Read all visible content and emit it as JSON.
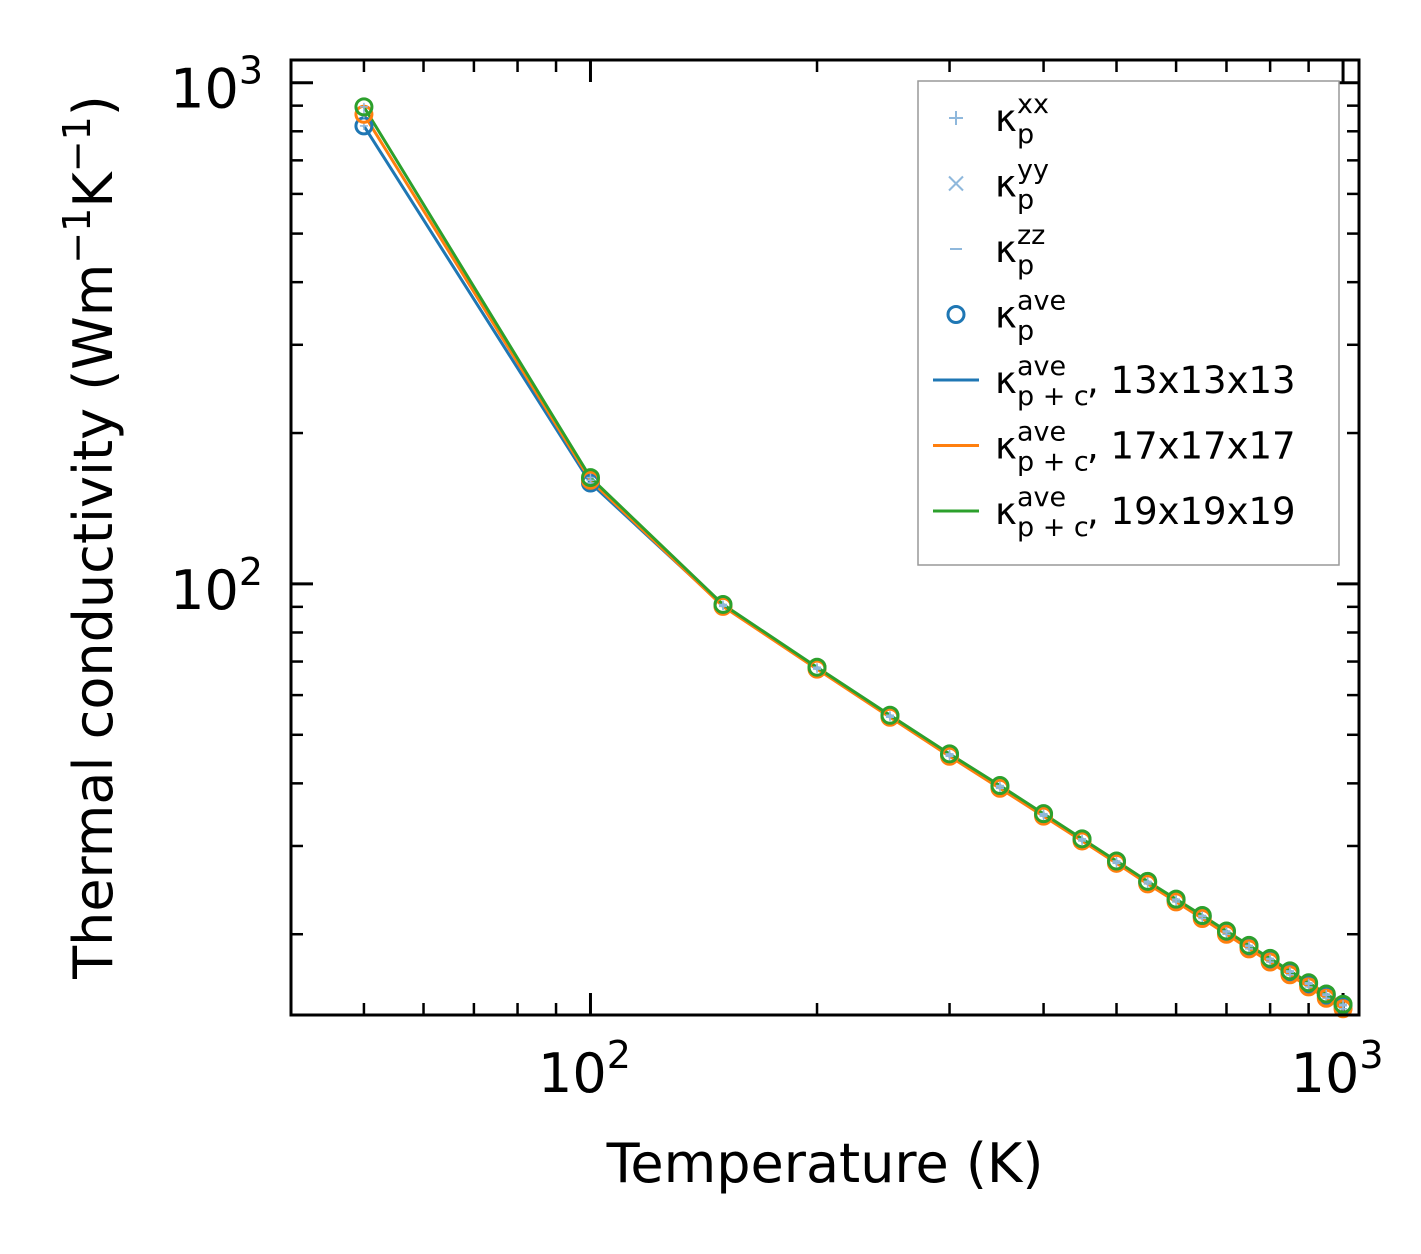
{
  "chart_data": {
    "type": "line",
    "xscale": "log",
    "yscale": "log",
    "xlabel": "Temperature (K)",
    "ylabel": {
      "main": "Thermal conductivity (Wm",
      "neg": "−1",
      "k": "K",
      "neg2": "−1",
      "close": ")"
    },
    "xlim": [
      40,
      1050
    ],
    "ylim": [
      13.8,
      1110
    ],
    "xticks": [
      {
        "base": "10",
        "exp": "2",
        "value": 100
      },
      {
        "base": "10",
        "exp": "3",
        "value": 1000
      }
    ],
    "yticks": [
      {
        "base": "10",
        "exp": "2",
        "value": 100
      },
      {
        "base": "10",
        "exp": "3",
        "value": 1000
      }
    ],
    "x": [
      50,
      100,
      150,
      200,
      250,
      300,
      350,
      400,
      450,
      500,
      550,
      600,
      650,
      700,
      750,
      800,
      850,
      900,
      950,
      1000
    ],
    "series": [
      {
        "name": "13x13x13",
        "color": "#1f77b4",
        "values": [
          820,
          159,
          90.5,
          68.0,
          54.5,
          45.6,
          39.4,
          34.6,
          30.9,
          27.9,
          25.4,
          23.4,
          21.7,
          20.2,
          18.9,
          17.8,
          16.8,
          15.9,
          15.1,
          14.4
        ]
      },
      {
        "name": "17x17x17",
        "color": "#ff7f0e",
        "values": [
          865,
          161,
          90.2,
          67.6,
          54.2,
          45.3,
          39.1,
          34.4,
          30.7,
          27.7,
          25.2,
          23.2,
          21.5,
          20.0,
          18.7,
          17.6,
          16.6,
          15.7,
          14.9,
          14.2
        ]
      },
      {
        "name": "19x19x19",
        "color": "#2ca02c",
        "values": [
          895,
          163,
          91.0,
          68.2,
          54.7,
          45.8,
          39.6,
          34.8,
          31.0,
          28.0,
          25.5,
          23.5,
          21.8,
          20.3,
          19.0,
          17.9,
          16.9,
          16.0,
          15.2,
          14.5
        ]
      }
    ],
    "legend": {
      "position": "top-right",
      "entries": [
        {
          "symbol": "plus",
          "color": "#8fb8dc",
          "base": "κ",
          "sup": "xx",
          "sub": "p",
          "suffix": ""
        },
        {
          "symbol": "cross",
          "color": "#8fb8dc",
          "base": "κ",
          "sup": "yy",
          "sub": "p",
          "suffix": ""
        },
        {
          "symbol": "dash",
          "color": "#8fb8dc",
          "base": "κ",
          "sup": "zz",
          "sub": "p",
          "suffix": ""
        },
        {
          "symbol": "circle",
          "color": "#1f77b4",
          "base": "κ",
          "sup": "ave",
          "sub": "p",
          "suffix": ""
        },
        {
          "symbol": "line",
          "color": "#1f77b4",
          "base": "κ",
          "sup": "ave",
          "sub": "p + c",
          "suffix": ", 13x13x13"
        },
        {
          "symbol": "line",
          "color": "#ff7f0e",
          "base": "κ",
          "sup": "ave",
          "sub": "p + c",
          "suffix": ", 17x17x17"
        },
        {
          "symbol": "line",
          "color": "#2ca02c",
          "base": "κ",
          "sup": "ave",
          "sub": "p + c",
          "suffix": ", 19x19x19"
        }
      ]
    }
  }
}
